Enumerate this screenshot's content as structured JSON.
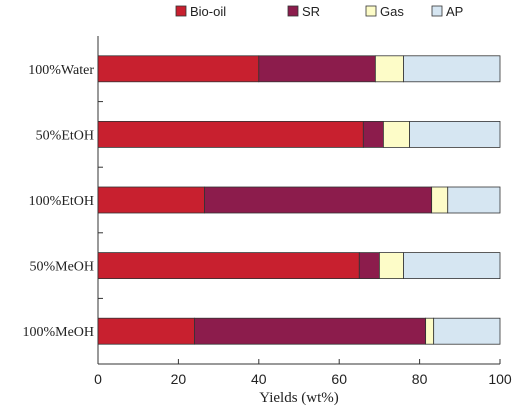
{
  "chart_data": {
    "type": "bar",
    "orientation": "horizontal",
    "stacked": true,
    "categories": [
      "100%Water",
      "50%EtOH",
      "100%EtOH",
      "50%MeOH",
      "100%MeOH"
    ],
    "series": [
      {
        "name": "Bio-oil",
        "color": "#c8202f",
        "values": [
          40,
          66,
          26.5,
          65,
          24
        ]
      },
      {
        "name": "SR",
        "color": "#8c1c4c",
        "values": [
          29,
          5,
          56.5,
          5,
          57.5
        ]
      },
      {
        "name": "Gas",
        "color": "#fdfcc8",
        "values": [
          7,
          6.5,
          4,
          6,
          2
        ]
      },
      {
        "name": "AP",
        "color": "#d6e6f2",
        "values": [
          24,
          22.5,
          13,
          24,
          16.5
        ]
      }
    ],
    "xlabel": "Yields (wt%)",
    "xlim": [
      0,
      100
    ],
    "xticks": [
      "0",
      "20",
      "40",
      "60",
      "80",
      "100"
    ],
    "legend_position": "top",
    "grid": false
  }
}
